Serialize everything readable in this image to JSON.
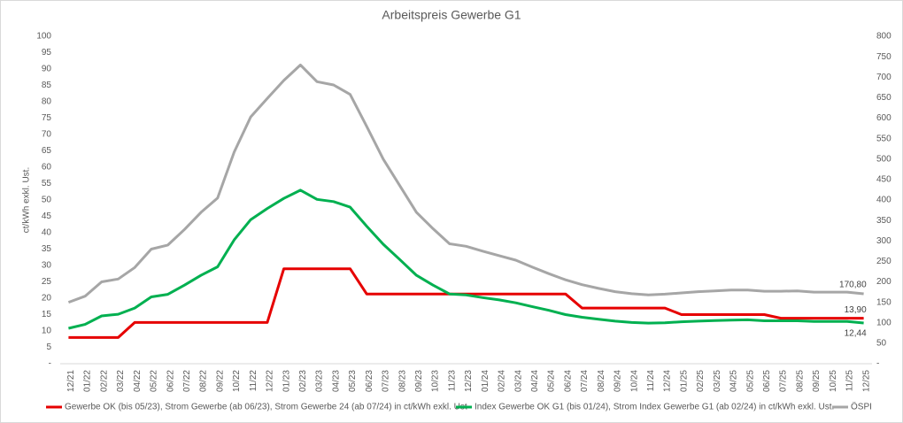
{
  "chart_data": {
    "type": "line",
    "title": "Arbeitspreis Gewerbe G1",
    "y_label": "ct/kWh exkl. Ust.",
    "categories": [
      "12/21",
      "01/22",
      "02/22",
      "03/22",
      "04/22",
      "05/22",
      "06/22",
      "07/22",
      "08/22",
      "09/22",
      "10/22",
      "11/22",
      "12/22",
      "01/23",
      "02/23",
      "03/23",
      "04/23",
      "05/23",
      "06/23",
      "07/23",
      "08/23",
      "09/23",
      "10/23",
      "11/23",
      "12/23",
      "01/24",
      "02/24",
      "03/24",
      "04/24",
      "05/24",
      "06/24",
      "07/24",
      "08/24",
      "09/24",
      "10/24",
      "11/24",
      "12/24",
      "01/25",
      "02/25",
      "03/25",
      "04/25",
      "05/25",
      "06/25",
      "07/25",
      "08/25",
      "09/25",
      "10/25",
      "11/25",
      "12/25"
    ],
    "ylim": [
      0,
      100
    ],
    "yticks": [
      {
        "value": 0,
        "label": "-"
      },
      5,
      10,
      15,
      20,
      25,
      30,
      35,
      40,
      45,
      50,
      55,
      60,
      65,
      70,
      75,
      80,
      85,
      90,
      95,
      100
    ],
    "y2lim": [
      0,
      800
    ],
    "y2ticks": [
      {
        "value": 0,
        "label": "-"
      },
      50,
      100,
      150,
      200,
      250,
      300,
      350,
      400,
      450,
      500,
      550,
      600,
      650,
      700,
      750,
      800
    ],
    "grid": false,
    "legend": "bottom",
    "series": [
      {
        "name": "Gewerbe OK (bis 05/23), Strom Gewerbe (ab 06/23), Strom Gewerbe 24 (ab 07/24) in ct/kWh exkl. Ust",
        "color": "#e60000",
        "values": [
          8,
          8,
          8,
          8,
          12.6,
          12.6,
          12.6,
          12.6,
          12.6,
          12.6,
          12.6,
          12.6,
          12.6,
          29,
          29,
          29,
          29,
          29,
          21.3,
          21.3,
          21.3,
          21.3,
          21.3,
          21.3,
          21.3,
          21.3,
          21.3,
          21.3,
          21.3,
          21.3,
          21.3,
          17,
          17,
          17,
          17,
          17,
          17,
          15,
          15,
          15,
          15,
          15,
          15,
          13.9,
          13.9,
          13.9,
          13.9,
          13.9,
          13.9
        ],
        "value_labels": [
          null,
          null,
          null,
          null,
          null,
          null,
          null,
          null,
          null,
          null,
          null,
          null,
          null,
          null,
          null,
          null,
          null,
          null,
          null,
          null,
          null,
          null,
          null,
          null,
          null,
          null,
          null,
          null,
          null,
          null,
          null,
          null,
          null,
          null,
          null,
          null,
          null,
          null,
          null,
          null,
          null,
          null,
          null,
          null,
          null,
          null,
          null,
          null,
          "13,90"
        ]
      },
      {
        "name": "Index Gewerbe OK G1 (bis 01/24), Strom Index Gewerbe G1 (ab 02/24) in ct/kWh exkl. Ust.",
        "color": "#00b050",
        "values": [
          10.8,
          12,
          14.6,
          15.1,
          17,
          20.4,
          21.2,
          24,
          27,
          29.6,
          37.8,
          44,
          47.4,
          50.5,
          53,
          50.2,
          49.5,
          47.8,
          42,
          36.5,
          31.8,
          27,
          24,
          21.3,
          21,
          20.2,
          19.5,
          18.6,
          17.4,
          16.3,
          15,
          14.2,
          13.6,
          13,
          12.6,
          12.4,
          12.5,
          12.8,
          13,
          13.2,
          13.3,
          13.4,
          13.1,
          13.1,
          13.1,
          12.9,
          12.9,
          12.9,
          12.44
        ],
        "value_labels": [
          null,
          null,
          null,
          null,
          null,
          null,
          null,
          null,
          null,
          null,
          null,
          null,
          null,
          null,
          null,
          null,
          null,
          null,
          null,
          null,
          null,
          null,
          null,
          null,
          null,
          null,
          null,
          null,
          null,
          null,
          null,
          null,
          null,
          null,
          null,
          null,
          null,
          null,
          null,
          null,
          null,
          null,
          null,
          null,
          null,
          null,
          null,
          null,
          "12,44"
        ]
      },
      {
        "name": "ÖSPI",
        "color": "#a6a6a6",
        "axis": "y2",
        "values": [
          150,
          165,
          200,
          207,
          235,
          280,
          290,
          328,
          370,
          405,
          517,
          603,
          648,
          692,
          730,
          689,
          681,
          658,
          580,
          500,
          435,
          370,
          330,
          293,
          287,
          275,
          264,
          253,
          236,
          220,
          205,
          193,
          184,
          176,
          171,
          168,
          170,
          173,
          176,
          178,
          180,
          180,
          177,
          177,
          178,
          175,
          175,
          175,
          170.8
        ],
        "value_labels": [
          null,
          null,
          null,
          null,
          null,
          null,
          null,
          null,
          null,
          null,
          null,
          null,
          null,
          null,
          null,
          null,
          null,
          null,
          null,
          null,
          null,
          null,
          null,
          null,
          null,
          null,
          null,
          null,
          null,
          null,
          null,
          null,
          null,
          null,
          null,
          null,
          null,
          null,
          null,
          null,
          null,
          null,
          null,
          null,
          null,
          null,
          null,
          null,
          "170,80"
        ]
      }
    ]
  }
}
